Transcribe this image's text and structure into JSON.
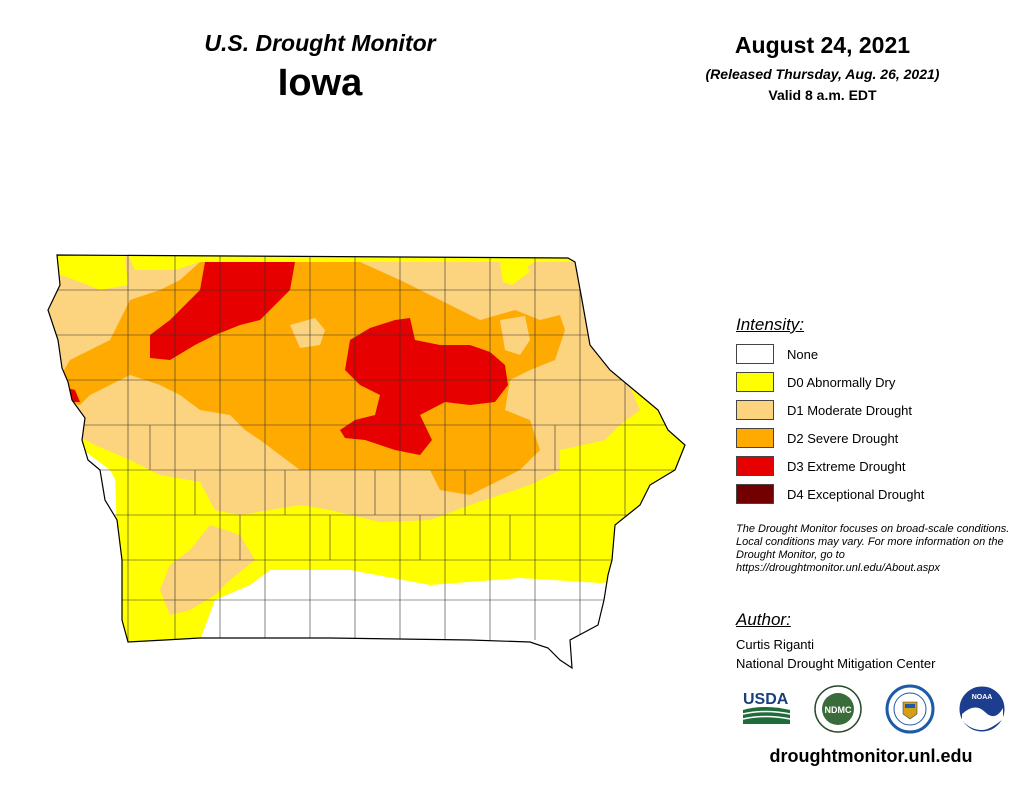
{
  "header": {
    "title": "U.S. Drought Monitor",
    "state": "Iowa",
    "date": "August 24, 2021",
    "released": "(Released Thursday, Aug. 26, 2021)",
    "valid": "Valid 8 a.m. EDT"
  },
  "legend": {
    "title": "Intensity:",
    "items": [
      {
        "label": "None",
        "color": "#ffffff"
      },
      {
        "label": "D0 Abnormally Dry",
        "color": "#ffff00"
      },
      {
        "label": "D1 Moderate Drought",
        "color": "#fcd37f"
      },
      {
        "label": "D2 Severe Drought",
        "color": "#ffaa00"
      },
      {
        "label": "D3 Extreme Drought",
        "color": "#e60000"
      },
      {
        "label": "D4 Exceptional Drought",
        "color": "#730000"
      }
    ]
  },
  "disclaimer": "The Drought Monitor focuses on broad-scale conditions. Local conditions may vary. For more information on the Drought Monitor, go to https://droughtmonitor.unl.edu/About.aspx",
  "author": {
    "title": "Author:",
    "name": "Curtis Riganti",
    "org": "National Drought Mitigation Center"
  },
  "logos": [
    {
      "name": "usda-logo",
      "text": "USDA"
    },
    {
      "name": "ndmc-logo",
      "text": "NDMC"
    },
    {
      "name": "doc-seal-logo",
      "text": ""
    },
    {
      "name": "noaa-logo",
      "text": "NOAA"
    }
  ],
  "url": "droughtmonitor.unl.edu"
}
